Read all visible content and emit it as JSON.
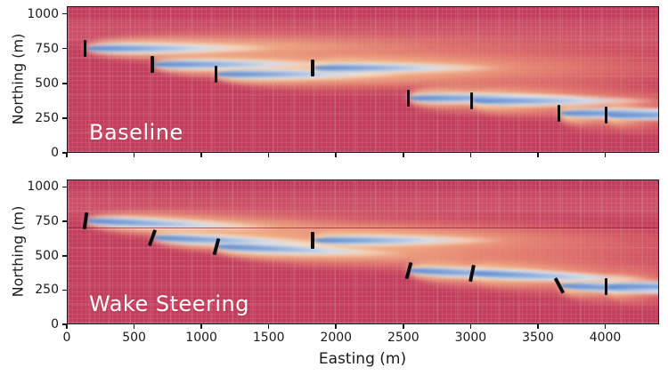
{
  "figure": {
    "xlabel": "Easting (m)",
    "ylabel": "Northing (m)",
    "x_ticks": [
      0,
      500,
      1000,
      1500,
      2000,
      2500,
      3000,
      3500,
      4000
    ],
    "y_ticks": [
      0,
      250,
      500,
      750,
      1000
    ]
  },
  "colors": {
    "field_red": "#c33e5c",
    "grid_line_light": "#d4607a",
    "wake_blue": "#5f83c8",
    "wake_pale_blue": "#aec6e8",
    "wake_white": "#f8f3e8",
    "wake_orange": "#f3ba8c",
    "wake_salmon": "#e88078",
    "turbine_black": "#0d0d12",
    "axis_black": "#15151c",
    "panel_label_white": "#ffffff"
  },
  "chart_data": [
    {
      "type": "heatmap",
      "title": "Baseline",
      "xlabel": "Easting (m)",
      "ylabel": "Northing (m)",
      "xlim": [
        0,
        4400
      ],
      "ylim": [
        0,
        1055
      ],
      "x_ticks": [
        0,
        500,
        1000,
        1500,
        2000,
        2500,
        3000,
        3500,
        4000
      ],
      "y_ticks": [
        0,
        250,
        500,
        750,
        1000
      ],
      "show_x_tick_labels": false,
      "colormap": "red-to-blue: red = freestream wind speed, white/orange = recovering wake, blue = strong wake deficit",
      "turbines": [
        {
          "easting_m": 130,
          "northing_m": 760,
          "yaw_deg": 0
        },
        {
          "easting_m": 630,
          "northing_m": 640,
          "yaw_deg": 0
        },
        {
          "easting_m": 1100,
          "northing_m": 570,
          "yaw_deg": 0
        },
        {
          "easting_m": 1820,
          "northing_m": 620,
          "yaw_deg": 0
        },
        {
          "easting_m": 2530,
          "northing_m": 400,
          "yaw_deg": 0
        },
        {
          "easting_m": 3000,
          "northing_m": 380,
          "yaw_deg": 0
        },
        {
          "easting_m": 3650,
          "northing_m": 290,
          "yaw_deg": 0
        },
        {
          "easting_m": 4000,
          "northing_m": 280,
          "yaw_deg": 0
        }
      ]
    },
    {
      "type": "heatmap",
      "title": "Wake Steering",
      "xlabel": "Easting (m)",
      "ylabel": "Northing (m)",
      "xlim": [
        0,
        4400
      ],
      "ylim": [
        0,
        1055
      ],
      "x_ticks": [
        0,
        500,
        1000,
        1500,
        2000,
        2500,
        3000,
        3500,
        4000
      ],
      "y_ticks": [
        0,
        250,
        500,
        750,
        1000
      ],
      "show_x_tick_labels": true,
      "colormap": "red-to-blue: red = freestream wind speed, white/orange = recovering wake, blue = strong wake deficit",
      "seam_line_northing_m": 715,
      "turbines": [
        {
          "easting_m": 130,
          "northing_m": 760,
          "yaw_deg": 8
        },
        {
          "easting_m": 630,
          "northing_m": 640,
          "yaw_deg": 20
        },
        {
          "easting_m": 1100,
          "northing_m": 570,
          "yaw_deg": 15
        },
        {
          "easting_m": 1820,
          "northing_m": 620,
          "yaw_deg": 0
        },
        {
          "easting_m": 2530,
          "northing_m": 400,
          "yaw_deg": 15
        },
        {
          "easting_m": 3000,
          "northing_m": 380,
          "yaw_deg": 12
        },
        {
          "easting_m": 3650,
          "northing_m": 290,
          "yaw_deg": -28
        },
        {
          "easting_m": 4000,
          "northing_m": 280,
          "yaw_deg": 0
        }
      ]
    }
  ]
}
